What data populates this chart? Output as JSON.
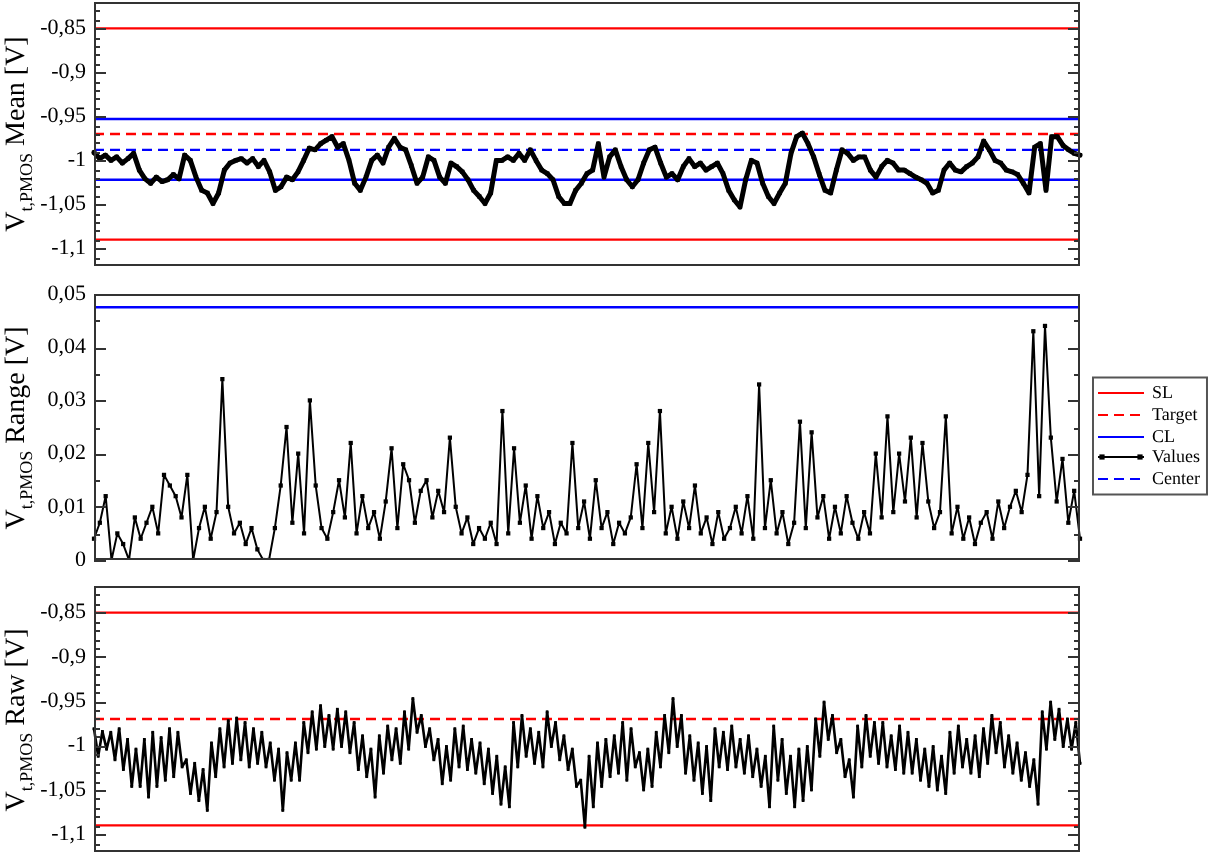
{
  "chart_data": [
    {
      "type": "line",
      "ylabel": "V$_{t,PMOS}$ Mean [V]",
      "categories": [
        null,
        null,
        null,
        null,
        null,
        null,
        null,
        null,
        null,
        null,
        null,
        null,
        null,
        null,
        null,
        null,
        null,
        null,
        null,
        null,
        null,
        null,
        null,
        null,
        null,
        null,
        null,
        null,
        null,
        null,
        null,
        null,
        null,
        null,
        null,
        null,
        null,
        null,
        null,
        null,
        null,
        null,
        null,
        null,
        null,
        null,
        null,
        null,
        null,
        null,
        null,
        null,
        null,
        null,
        null,
        null,
        null,
        null,
        null,
        null,
        null,
        null,
        null,
        null,
        null,
        null,
        null,
        null,
        null,
        null,
        null,
        null,
        null,
        null,
        null,
        null,
        null,
        null,
        null,
        null,
        null,
        null,
        null,
        null,
        null,
        null,
        null,
        null,
        null,
        null,
        null,
        null,
        null,
        null,
        null,
        null,
        null,
        null,
        null,
        null,
        null,
        null,
        null,
        null,
        null,
        null,
        null,
        null,
        null,
        null,
        null,
        null,
        null,
        null,
        null,
        null,
        null,
        null,
        null,
        null,
        null,
        null,
        null,
        null,
        null,
        null,
        null,
        null,
        null,
        null,
        null,
        null,
        null,
        null,
        null,
        null,
        null,
        null,
        null,
        null,
        null,
        null,
        null,
        null,
        null,
        null,
        null,
        null,
        null,
        null,
        null,
        null,
        null,
        null,
        null,
        null,
        null,
        null,
        null,
        null,
        null,
        null,
        null,
        null,
        null,
        null,
        null,
        null,
        null,
        null,
        null,
        null,
        null,
        null,
        null
      ],
      "series": [
        {
          "color": "#000000",
          "values": [
            -0.991,
            -0.998,
            -0.994,
            -1.0,
            -0.996,
            -1.003,
            -0.998,
            -0.992,
            -1.011,
            -1.021,
            -1.026,
            -1.019,
            -1.024,
            -1.022,
            -1.016,
            -1.021,
            -0.994,
            -1.0,
            -1.019,
            -1.034,
            -1.037,
            -1.049,
            -1.037,
            -1.011,
            -1.003,
            -1.0,
            -0.998,
            -1.003,
            -0.998,
            -1.007,
            -1.0,
            -1.013,
            -1.034,
            -1.03,
            -1.019,
            -1.022,
            -1.013,
            -1.0,
            -0.986,
            -0.988,
            -0.981,
            -0.977,
            -0.973,
            -0.985,
            -0.981,
            -1.0,
            -1.026,
            -1.034,
            -1.019,
            -1.0,
            -0.994,
            -1.003,
            -0.985,
            -0.975,
            -0.985,
            -0.988,
            -1.006,
            -1.026,
            -1.019,
            -0.996,
            -1.0,
            -1.019,
            -1.026,
            -1.003,
            -1.007,
            -1.013,
            -1.022,
            -1.034,
            -1.041,
            -1.049,
            -1.037,
            -1.0,
            -1.0,
            -0.996,
            -1.0,
            -0.992,
            -1.0,
            -0.988,
            -1.0,
            -1.011,
            -1.015,
            -1.022,
            -1.041,
            -1.049,
            -1.049,
            -1.034,
            -1.026,
            -1.015,
            -1.011,
            -0.981,
            -1.019,
            -0.996,
            -0.988,
            -1.007,
            -1.022,
            -1.03,
            -1.022,
            -1.003,
            -0.988,
            -0.985,
            -1.003,
            -1.019,
            -1.015,
            -1.022,
            -1.007,
            -0.998,
            -1.007,
            -1.003,
            -1.011,
            -1.007,
            -1.003,
            -1.015,
            -1.034,
            -1.045,
            -1.053,
            -1.022,
            -1.0,
            -1.003,
            -1.026,
            -1.041,
            -1.049,
            -1.037,
            -1.026,
            -0.992,
            -0.973,
            -0.969,
            -0.981,
            -0.996,
            -1.016,
            -1.034,
            -1.037,
            -1.011,
            -0.988,
            -0.992,
            -1.0,
            -0.996,
            -0.996,
            -1.011,
            -1.019,
            -1.007,
            -1.0,
            -1.003,
            -1.011,
            -1.011,
            -1.015,
            -1.019,
            -1.022,
            -1.026,
            -1.037,
            -1.034,
            -1.011,
            -1.003,
            -1.011,
            -1.013,
            -1.007,
            -1.003,
            -0.996,
            -0.978,
            -0.988,
            -1.0,
            -1.003,
            -1.011,
            -1.013,
            -1.016,
            -1.026,
            -1.037,
            -0.985,
            -0.981,
            -1.034,
            -0.973,
            -0.973,
            -0.983,
            -0.988,
            -0.992,
            -0.994
          ]
        }
      ],
      "ylim": [
        -1.12,
        -0.82
      ],
      "yticks": [
        {
          "value": -1.11,
          "label": null
        },
        {
          "value": -1.1,
          "label": "-1,1"
        },
        {
          "value": -1.09,
          "label": null
        },
        {
          "value": -1.08,
          "label": null
        },
        {
          "value": -1.07,
          "label": null
        },
        {
          "value": -1.06,
          "label": null
        },
        {
          "value": -1.05,
          "label": "-1,05"
        },
        {
          "value": -1.04,
          "label": null
        },
        {
          "value": -1.03,
          "label": null
        },
        {
          "value": -1.02,
          "label": null
        },
        {
          "value": -1.01,
          "label": null
        },
        {
          "value": -1,
          "label": "-1"
        },
        {
          "value": -0.99,
          "label": null
        },
        {
          "value": -0.98,
          "label": null
        },
        {
          "value": -0.97,
          "label": null
        },
        {
          "value": -0.96,
          "label": null
        },
        {
          "value": -0.95,
          "label": "-0,95"
        },
        {
          "value": -0.94,
          "label": null
        },
        {
          "value": -0.93,
          "label": null
        },
        {
          "value": -0.92,
          "label": null
        },
        {
          "value": -0.91,
          "label": null
        },
        {
          "value": -0.9,
          "label": "-0,9"
        },
        {
          "value": -0.89,
          "label": null
        },
        {
          "value": -0.88,
          "label": null
        },
        {
          "value": -0.87,
          "label": null
        },
        {
          "value": -0.86,
          "label": null
        },
        {
          "value": -0.85,
          "label": "-0,85"
        },
        {
          "value": -0.84,
          "label": null
        },
        {
          "value": -0.83,
          "label": null
        }
      ],
      "tick_labels": "y",
      "marker": "square",
      "ref_lines": [
        {
          "axis": "y",
          "value": -0.85,
          "label": "SL",
          "color": "#ff0000",
          "line_style": "solid"
        },
        {
          "axis": "y",
          "value": -1.09,
          "color": "#ff0000",
          "line_style": "solid"
        },
        {
          "axis": "y",
          "value": -0.97,
          "label": "Target",
          "color": "#ff0000",
          "line_style": "dashed"
        },
        {
          "axis": "y",
          "value": -0.953,
          "label": "CL",
          "color": "#0000ff",
          "line_style": "solid"
        },
        {
          "axis": "y",
          "value": -1.022,
          "color": "#0000ff",
          "line_style": "solid"
        },
        {
          "axis": "y",
          "value": -0.988,
          "label": "Center",
          "color": "#0000ff",
          "line_style": "dashed"
        }
      ]
    },
    {
      "type": "line",
      "ylabel": "V$_{t,PMOS}$ Range [V]",
      "categories": [
        null,
        null,
        null,
        null,
        null,
        null,
        null,
        null,
        null,
        null,
        null,
        null,
        null,
        null,
        null,
        null,
        null,
        null,
        null,
        null,
        null,
        null,
        null,
        null,
        null,
        null,
        null,
        null,
        null,
        null,
        null,
        null,
        null,
        null,
        null,
        null,
        null,
        null,
        null,
        null,
        null,
        null,
        null,
        null,
        null,
        null,
        null,
        null,
        null,
        null,
        null,
        null,
        null,
        null,
        null,
        null,
        null,
        null,
        null,
        null,
        null,
        null,
        null,
        null,
        null,
        null,
        null,
        null,
        null,
        null,
        null,
        null,
        null,
        null,
        null,
        null,
        null,
        null,
        null,
        null,
        null,
        null,
        null,
        null,
        null,
        null,
        null,
        null,
        null,
        null,
        null,
        null,
        null,
        null,
        null,
        null,
        null,
        null,
        null,
        null,
        null,
        null,
        null,
        null,
        null,
        null,
        null,
        null,
        null,
        null,
        null,
        null,
        null,
        null,
        null,
        null,
        null,
        null,
        null,
        null,
        null,
        null,
        null,
        null,
        null,
        null,
        null,
        null,
        null,
        null,
        null,
        null,
        null,
        null,
        null,
        null,
        null,
        null,
        null,
        null,
        null,
        null,
        null,
        null,
        null,
        null,
        null,
        null,
        null,
        null,
        null,
        null,
        null,
        null,
        null,
        null,
        null,
        null,
        null,
        null,
        null,
        null,
        null,
        null,
        null,
        null,
        null,
        null,
        null,
        null
      ],
      "series": [
        {
          "name": "Values",
          "color": "#000000",
          "values": [
            0.004,
            0.007,
            0.012,
            0,
            0.005,
            0.003,
            0,
            0.008,
            0.004,
            0.007,
            0.01,
            0.005,
            0.016,
            0.014,
            0.012,
            0.008,
            0.016,
            0,
            0.006,
            0.01,
            0.004,
            0.009,
            0.034,
            0.01,
            0.005,
            0.007,
            0.003,
            0.006,
            0.002,
            0,
            0,
            0.006,
            0.014,
            0.025,
            0.007,
            0.02,
            0.005,
            0.03,
            0.014,
            0.006,
            0.004,
            0.009,
            0.015,
            0.008,
            0.022,
            0.005,
            0.012,
            0.006,
            0.009,
            0.004,
            0.011,
            0.021,
            0.006,
            0.018,
            0.015,
            0.007,
            0.013,
            0.015,
            0.008,
            0.013,
            0.009,
            0.023,
            0.01,
            0.005,
            0.008,
            0.003,
            0.006,
            0.004,
            0.007,
            0.003,
            0.028,
            0.005,
            0.021,
            0.007,
            0.014,
            0.004,
            0.012,
            0.006,
            0.009,
            0.003,
            0.007,
            0.005,
            0.022,
            0.006,
            0.011,
            0.004,
            0.015,
            0.006,
            0.009,
            0.003,
            0.007,
            0.005,
            0.008,
            0.018,
            0.006,
            0.022,
            0.009,
            0.028,
            0.005,
            0.01,
            0.004,
            0.011,
            0.006,
            0.014,
            0.005,
            0.008,
            0.003,
            0.009,
            0.004,
            0.006,
            0.01,
            0.005,
            0.012,
            0.004,
            0.033,
            0.006,
            0.015,
            0.005,
            0.009,
            0.003,
            0.007,
            0.026,
            0.006,
            0.024,
            0.008,
            0.012,
            0.004,
            0.01,
            0.005,
            0.012,
            0.007,
            0.004,
            0.009,
            0.005,
            0.02,
            0.008,
            0.027,
            0.009,
            0.02,
            0.011,
            0.023,
            0.008,
            0.022,
            0.011,
            0.006,
            0.009,
            0.027,
            0.005,
            0.01,
            0.004,
            0.008,
            0.003,
            0.007,
            0.009,
            0.004,
            0.011,
            0.006,
            0.01,
            0.013,
            0.009,
            0.016,
            0.043,
            0.012,
            0.044,
            0.023,
            0.011,
            0.019,
            0.007,
            0.013,
            0.004
          ]
        }
      ],
      "ylim": [
        0,
        0.05
      ],
      "yticks": [
        {
          "value": 0,
          "label": "0"
        },
        {
          "value": 0.005,
          "label": null
        },
        {
          "value": 0.01,
          "label": "0,01"
        },
        {
          "value": 0.015,
          "label": null
        },
        {
          "value": 0.02,
          "label": "0,02"
        },
        {
          "value": 0.025,
          "label": null
        },
        {
          "value": 0.03,
          "label": "0,03"
        },
        {
          "value": 0.035,
          "label": null
        },
        {
          "value": 0.04,
          "label": "0,04"
        },
        {
          "value": 0.045,
          "label": null
        },
        {
          "value": 0.05,
          "label": "0,05"
        }
      ],
      "tick_labels": "y",
      "marker": "square",
      "legend": "right",
      "ref_lines": [
        {
          "axis": "y",
          "value": 0.0475,
          "color": "#0000ff",
          "line_style": "solid"
        }
      ]
    },
    {
      "type": "line",
      "ylabel": "V$_{t,PMOS}$ Raw [V]",
      "categories": [
        null,
        null,
        null,
        null,
        null,
        null,
        null,
        null,
        null,
        null,
        null,
        null,
        null,
        null,
        null,
        null,
        null,
        null,
        null,
        null,
        null,
        null,
        null,
        null,
        null,
        null,
        null,
        null,
        null,
        null,
        null,
        null,
        null,
        null,
        null,
        null,
        null,
        null,
        null,
        null,
        null,
        null,
        null,
        null,
        null,
        null,
        null,
        null,
        null,
        null,
        null,
        null,
        null,
        null,
        null,
        null,
        null,
        null,
        null,
        null,
        null,
        null,
        null,
        null,
        null,
        null,
        null,
        null,
        null,
        null,
        null,
        null,
        null,
        null,
        null,
        null,
        null,
        null,
        null,
        null,
        null,
        null,
        null,
        null,
        null,
        null,
        null,
        null,
        null,
        null,
        null,
        null,
        null,
        null,
        null,
        null,
        null,
        null,
        null,
        null,
        null,
        null,
        null,
        null,
        null,
        null,
        null,
        null,
        null,
        null,
        null,
        null,
        null,
        null,
        null,
        null,
        null,
        null,
        null,
        null,
        null,
        null,
        null,
        null,
        null,
        null,
        null,
        null,
        null,
        null,
        null,
        null,
        null,
        null,
        null,
        null,
        null,
        null,
        null,
        null,
        null,
        null,
        null,
        null,
        null,
        null,
        null,
        null,
        null,
        null,
        null,
        null,
        null,
        null,
        null,
        null,
        null,
        null,
        null,
        null,
        null,
        null,
        null,
        null,
        null,
        null,
        null,
        null,
        null,
        null,
        null,
        null,
        null,
        null,
        null,
        null,
        null,
        null,
        null,
        null,
        null,
        null,
        null,
        null,
        null,
        null,
        null,
        null,
        null,
        null,
        null,
        null,
        null,
        null,
        null,
        null,
        null,
        null,
        null,
        null,
        null,
        null,
        null,
        null,
        null,
        null,
        null,
        null,
        null,
        null,
        null,
        null,
        null,
        null,
        null,
        null,
        null,
        null,
        null,
        null,
        null,
        null,
        null,
        null,
        null,
        null,
        null,
        null,
        null,
        null,
        null,
        null,
        null,
        null,
        null,
        null
      ],
      "series": [
        {
          "color": "#000000",
          "values": [
            -0.981,
            -1.012,
            -0.984,
            -1.004,
            -0.985,
            -1.016,
            -0.981,
            -1.027,
            -0.993,
            -1.046,
            -1.004,
            -1.046,
            -0.993,
            -1.058,
            -0.985,
            -1.046,
            -0.991,
            -1.039,
            -0.981,
            -1.035,
            -0.985,
            -1.024,
            -1.016,
            -1.054,
            -1.02,
            -1.062,
            -1.027,
            -1.073,
            -0.997,
            -1.035,
            -0.981,
            -1.024,
            -0.972,
            -1.02,
            -0.969,
            -1.016,
            -0.974,
            -1.024,
            -0.981,
            -1.02,
            -0.985,
            -1.024,
            -0.997,
            -1.039,
            -1.004,
            -1.073,
            -1.008,
            -1.039,
            -0.997,
            -1.039,
            -0.974,
            -1.008,
            -0.962,
            -1.004,
            -0.955,
            -1.001,
            -0.966,
            -1.004,
            -0.959,
            -1.001,
            -0.962,
            -1.008,
            -0.974,
            -1.027,
            -0.989,
            -1.035,
            -1.004,
            -1.058,
            -0.989,
            -1.031,
            -0.978,
            -1.016,
            -0.981,
            -1.02,
            -0.962,
            -1.004,
            -0.947,
            -0.985,
            -0.966,
            -1.001,
            -0.981,
            -1.016,
            -0.993,
            -1.043,
            -1.001,
            -1.039,
            -0.981,
            -1.024,
            -0.978,
            -1.027,
            -0.993,
            -1.031,
            -0.997,
            -1.043,
            -1.004,
            -1.054,
            -1.012,
            -1.066,
            -1.024,
            -1.069,
            -0.974,
            -1.024,
            -0.966,
            -1.012,
            -0.981,
            -1.02,
            -0.985,
            -1.024,
            -0.962,
            -1.001,
            -0.974,
            -1.016,
            -0.989,
            -1.027,
            -1.004,
            -1.046,
            -1.039,
            -1.092,
            -1.012,
            -1.069,
            -0.997,
            -1.046,
            -0.993,
            -1.035,
            -0.989,
            -1.031,
            -0.974,
            -1.039,
            -0.981,
            -1.024,
            -1.008,
            -1.05,
            -1.004,
            -1.046,
            -0.985,
            -1.024,
            -0.966,
            -1.008,
            -0.947,
            -1.001,
            -0.966,
            -1.031,
            -0.989,
            -1.039,
            -0.997,
            -1.054,
            -1.001,
            -1.062,
            -0.981,
            -1.024,
            -0.985,
            -1.027,
            -0.978,
            -1.024,
            -0.993,
            -1.031,
            -0.989,
            -1.035,
            -1.004,
            -1.046,
            -1.012,
            -1.069,
            -0.978,
            -1.039,
            -0.993,
            -1.054,
            -1.012,
            -1.069,
            -1.004,
            -1.062,
            -1.001,
            -1.05,
            -0.97,
            -1.012,
            -0.951,
            -0.993,
            -0.966,
            -1.008,
            -0.993,
            -1.035,
            -1.016,
            -1.058,
            -0.978,
            -1.024,
            -0.966,
            -1.012,
            -0.974,
            -1.02,
            -0.974,
            -1.024,
            -0.989,
            -1.027,
            -0.978,
            -1.031,
            -0.985,
            -1.031,
            -0.993,
            -1.039,
            -1.004,
            -1.046,
            -1.001,
            -1.05,
            -1.012,
            -1.054,
            -0.985,
            -1.031,
            -0.978,
            -1.024,
            -0.993,
            -1.031,
            -0.989,
            -1.035,
            -0.981,
            -1.02,
            -0.966,
            -1.008,
            -0.974,
            -1.024,
            -0.989,
            -1.031,
            -0.997,
            -1.039,
            -1.008,
            -1.046,
            -1.016,
            -1.066,
            -0.962,
            -1.004,
            -0.951,
            -0.993,
            -0.959,
            -1.001,
            -0.97,
            -1.004,
            -0.974,
            -1.02
          ]
        }
      ],
      "ylim": [
        -1.12,
        -0.82
      ],
      "yticks": [
        {
          "value": -1.11,
          "label": null
        },
        {
          "value": -1.1,
          "label": "-1,1"
        },
        {
          "value": -1.09,
          "label": null
        },
        {
          "value": -1.08,
          "label": null
        },
        {
          "value": -1.07,
          "label": null
        },
        {
          "value": -1.06,
          "label": null
        },
        {
          "value": -1.05,
          "label": "-1,05"
        },
        {
          "value": -1.04,
          "label": null
        },
        {
          "value": -1.03,
          "label": null
        },
        {
          "value": -1.02,
          "label": null
        },
        {
          "value": -1.01,
          "label": null
        },
        {
          "value": -1,
          "label": "-1"
        },
        {
          "value": -0.99,
          "label": null
        },
        {
          "value": -0.98,
          "label": null
        },
        {
          "value": -0.97,
          "label": null
        },
        {
          "value": -0.96,
          "label": null
        },
        {
          "value": -0.95,
          "label": "-0,95"
        },
        {
          "value": -0.94,
          "label": null
        },
        {
          "value": -0.93,
          "label": null
        },
        {
          "value": -0.92,
          "label": null
        },
        {
          "value": -0.91,
          "label": null
        },
        {
          "value": -0.9,
          "label": "-0,9"
        },
        {
          "value": -0.89,
          "label": null
        },
        {
          "value": -0.88,
          "label": null
        },
        {
          "value": -0.87,
          "label": null
        },
        {
          "value": -0.86,
          "label": null
        },
        {
          "value": -0.85,
          "label": "-0,85"
        },
        {
          "value": -0.84,
          "label": null
        },
        {
          "value": -0.83,
          "label": null
        }
      ],
      "tick_labels": "y",
      "marker": "square",
      "ref_lines": [
        {
          "axis": "y",
          "value": -0.85,
          "color": "#ff0000",
          "line_style": "solid"
        },
        {
          "axis": "y",
          "value": -1.09,
          "color": "#ff0000",
          "line_style": "solid"
        },
        {
          "axis": "y",
          "value": -0.97,
          "color": "#ff0000",
          "line_style": "dashed"
        }
      ]
    }
  ]
}
